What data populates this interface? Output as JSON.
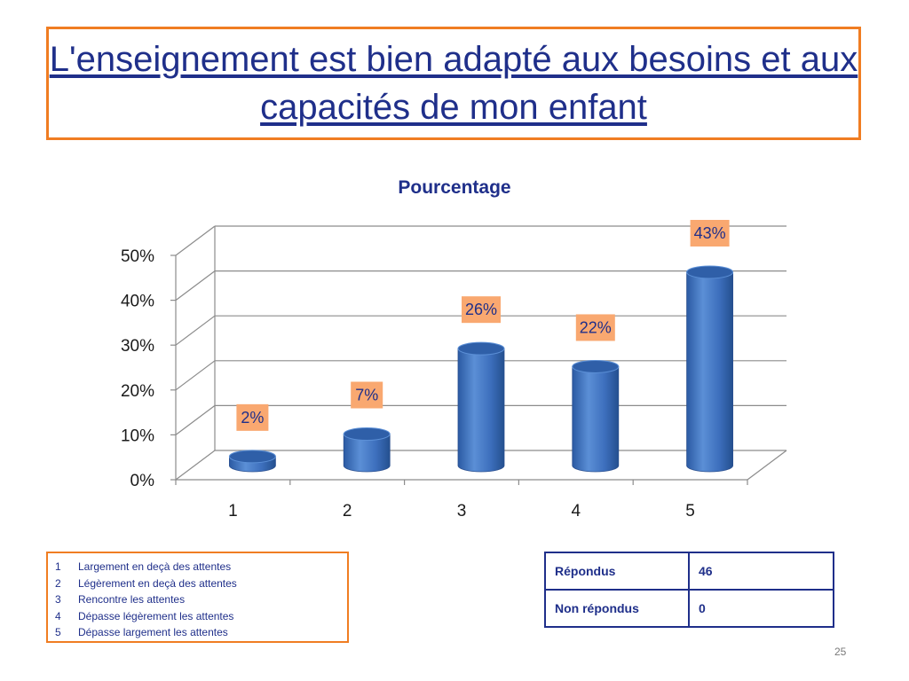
{
  "slide": {
    "title": "L'enseignement est bien adapté aux besoins et aux capacités de mon enfant",
    "page_number": "25"
  },
  "chart_data": {
    "type": "bar",
    "style": "3d-cylinder",
    "title": "Pourcentage",
    "categories": [
      "1",
      "2",
      "3",
      "4",
      "5"
    ],
    "values": [
      2,
      7,
      26,
      22,
      43
    ],
    "value_labels": [
      "2%",
      "7%",
      "26%",
      "22%",
      "43%"
    ],
    "y_ticks": [
      "0%",
      "10%",
      "20%",
      "30%",
      "40%",
      "50%"
    ],
    "ylim": [
      0,
      50
    ],
    "grid": true,
    "bar_color": "#3e72c0",
    "label_bg_color": "#f9a870"
  },
  "legend": {
    "items": [
      {
        "num": "1",
        "text": "Largement en deçà des attentes"
      },
      {
        "num": "2",
        "text": "Légèrement en deçà des attentes"
      },
      {
        "num": "3",
        "text": "Rencontre les attentes"
      },
      {
        "num": "4",
        "text": "Dépasse légèrement les attentes"
      },
      {
        "num": "5",
        "text": "Dépasse largement les attentes"
      }
    ]
  },
  "responses": {
    "rows": [
      {
        "label": "Répondus",
        "value": "46"
      },
      {
        "label": "Non répondus",
        "value": "0"
      }
    ]
  },
  "colors": {
    "accent_orange": "#f07d22",
    "title_blue": "#1f2f8a"
  }
}
